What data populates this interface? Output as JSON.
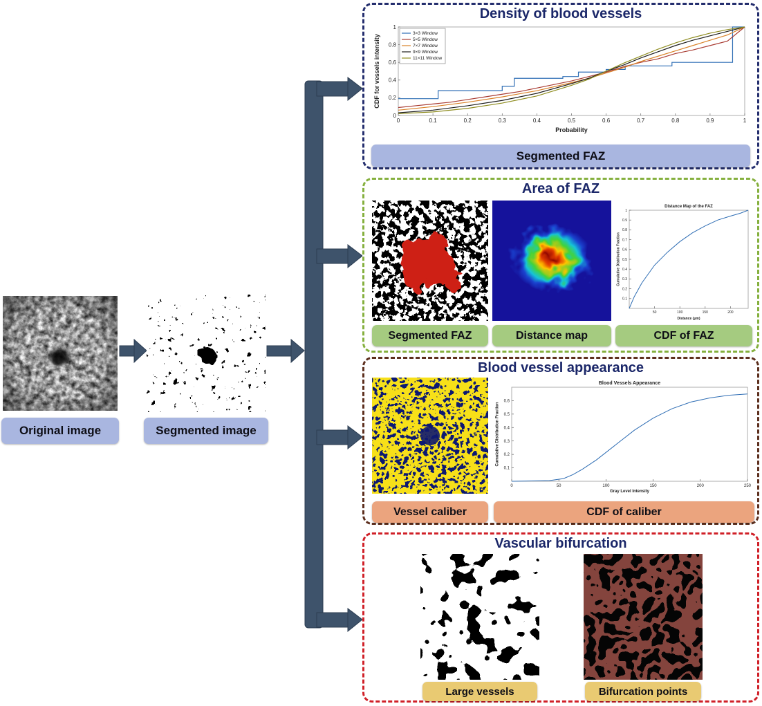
{
  "figure": {
    "left": {
      "original_label": "Original image",
      "segmented_label": "Segmented image"
    },
    "panels": {
      "density": {
        "title": "Density of blood vessels",
        "footer": "Segmented FAZ"
      },
      "faz": {
        "title": "Area of FAZ",
        "label_segmented": "Segmented FAZ",
        "label_distance": "Distance map",
        "label_cdf": "CDF of FAZ"
      },
      "appearance": {
        "title": "Blood vessel appearance",
        "label_caliber": "Vessel caliber",
        "label_cdf": "CDF of caliber"
      },
      "bifurcation": {
        "title": "Vascular bifurcation",
        "label_large": "Large vessels",
        "label_points": "Bifurcation points"
      }
    }
  },
  "colors": {
    "arrow": "#3e536b",
    "panel_density_border": "#242e6e",
    "panel_faz_border": "#85b03e",
    "panel_appearance_border": "#5d2f1e",
    "panel_bifurcation_border": "#d02028",
    "label_blue": "#a9b6e0",
    "label_green": "#a5cb80",
    "label_salmon": "#eba47e",
    "label_tan": "#e9ca72",
    "title_navy": "#1b2769"
  },
  "chart_data": [
    {
      "id": "density-cdf",
      "type": "line",
      "title": "",
      "xlabel": "Probability",
      "ylabel": "CDF for vessels intensity",
      "xlim": [
        0,
        1
      ],
      "ylim": [
        0,
        1
      ],
      "xticks": [
        0,
        0.1,
        0.2,
        0.3,
        0.4,
        0.5,
        0.6,
        0.7,
        0.8,
        0.9,
        1
      ],
      "yticks": [
        0,
        0.2,
        0.4,
        0.6,
        0.8,
        1
      ],
      "grid": false,
      "legend_position": "top-left",
      "legend_size": [
        66,
        51
      ],
      "margins": {
        "l": 36,
        "r": 8,
        "t": 6,
        "b": 26
      },
      "tick_font": 8,
      "label_font": 9,
      "title_font": 10,
      "line_width": 1.2,
      "series": [
        {
          "name": "3×3 Window",
          "color": "#2f6eb5",
          "x": [
            0,
            0.115,
            0.115,
            0.3,
            0.3,
            0.335,
            0.335,
            0.475,
            0.475,
            0.52,
            0.52,
            0.6,
            0.6,
            0.655,
            0.655,
            0.79,
            0.79,
            0.965,
            0.965,
            1
          ],
          "y": [
            0.19,
            0.19,
            0.28,
            0.28,
            0.33,
            0.33,
            0.42,
            0.42,
            0.44,
            0.44,
            0.49,
            0.49,
            0.52,
            0.52,
            0.56,
            0.56,
            0.6,
            0.6,
            1,
            1
          ]
        },
        {
          "name": "5×5 Window",
          "color": "#a93b32",
          "x": [
            0,
            0.05,
            0.1,
            0.15,
            0.2,
            0.25,
            0.3,
            0.35,
            0.4,
            0.45,
            0.5,
            0.55,
            0.6,
            0.65,
            0.7,
            0.75,
            0.8,
            0.85,
            0.9,
            0.95,
            1
          ],
          "y": [
            0.09,
            0.11,
            0.13,
            0.15,
            0.18,
            0.21,
            0.24,
            0.27,
            0.31,
            0.35,
            0.39,
            0.44,
            0.49,
            0.55,
            0.6,
            0.64,
            0.7,
            0.74,
            0.79,
            0.84,
            1
          ]
        },
        {
          "name": "7×7 Window",
          "color": "#d98127",
          "x": [
            0,
            0.1,
            0.2,
            0.3,
            0.4,
            0.5,
            0.55,
            0.6,
            0.65,
            0.7,
            0.75,
            0.8,
            0.85,
            0.9,
            0.95,
            1
          ],
          "y": [
            0.06,
            0.1,
            0.15,
            0.21,
            0.28,
            0.37,
            0.42,
            0.48,
            0.54,
            0.61,
            0.67,
            0.73,
            0.79,
            0.85,
            0.91,
            1
          ]
        },
        {
          "name": "9×9 Window",
          "color": "#1c1c1c",
          "x": [
            0,
            0.1,
            0.2,
            0.3,
            0.4,
            0.5,
            0.55,
            0.6,
            0.65,
            0.7,
            0.75,
            0.8,
            0.85,
            0.9,
            0.95,
            1
          ],
          "y": [
            0.03,
            0.06,
            0.11,
            0.17,
            0.25,
            0.36,
            0.42,
            0.5,
            0.57,
            0.65,
            0.72,
            0.79,
            0.85,
            0.9,
            0.95,
            1
          ]
        },
        {
          "name": "11×11 Window",
          "color": "#8f8d20",
          "x": [
            0,
            0.1,
            0.2,
            0.3,
            0.4,
            0.5,
            0.55,
            0.6,
            0.65,
            0.7,
            0.75,
            0.8,
            0.85,
            0.9,
            0.95,
            1
          ],
          "y": [
            0.02,
            0.04,
            0.08,
            0.14,
            0.22,
            0.34,
            0.41,
            0.5,
            0.59,
            0.67,
            0.75,
            0.82,
            0.88,
            0.93,
            0.97,
            1
          ]
        }
      ]
    },
    {
      "id": "faz-cdf",
      "type": "line",
      "title": "Distance Map of the FAZ",
      "xlabel": "Distance (μm)",
      "ylabel": "Cumulative Distribution Fraction",
      "xlim": [
        0,
        235
      ],
      "ylim": [
        0,
        1
      ],
      "xticks": [
        50,
        100,
        150,
        200
      ],
      "yticks": [
        0.1,
        0.2,
        0.3,
        0.4,
        0.5,
        0.6,
        0.7,
        0.8,
        0.9,
        1
      ],
      "grid": false,
      "margins": {
        "l": 20,
        "r": 6,
        "t": 14,
        "b": 18
      },
      "tick_font": 5,
      "label_font": 5,
      "title_font": 6,
      "line_width": 1,
      "series": [
        {
          "name": "CDF",
          "color": "#2e6db4",
          "x": [
            0,
            10,
            25,
            50,
            75,
            100,
            125,
            150,
            175,
            200,
            220,
            235
          ],
          "y": [
            0,
            0.12,
            0.26,
            0.44,
            0.57,
            0.68,
            0.77,
            0.84,
            0.9,
            0.94,
            0.97,
            1
          ]
        }
      ]
    },
    {
      "id": "caliber-cdf",
      "type": "line",
      "title": "Blood Vessels Appearance",
      "xlabel": "Gray Level Intensity",
      "ylabel": "Cumulative Distribution Fraction",
      "xlim": [
        0,
        250
      ],
      "ylim": [
        0,
        0.7
      ],
      "xticks": [
        0,
        50,
        100,
        150,
        200,
        250
      ],
      "yticks": [
        0.1,
        0.2,
        0.3,
        0.4,
        0.5,
        0.6
      ],
      "grid": false,
      "margins": {
        "l": 26,
        "r": 10,
        "t": 14,
        "b": 18
      },
      "tick_font": 6,
      "label_font": 6,
      "title_font": 7,
      "line_width": 1,
      "series": [
        {
          "name": "CDF",
          "color": "#2e6db4",
          "x": [
            0,
            40,
            55,
            65,
            75,
            90,
            110,
            130,
            150,
            170,
            190,
            210,
            230,
            250
          ],
          "y": [
            0,
            0.005,
            0.02,
            0.05,
            0.09,
            0.16,
            0.27,
            0.38,
            0.47,
            0.54,
            0.59,
            0.62,
            0.64,
            0.65
          ]
        }
      ]
    }
  ]
}
